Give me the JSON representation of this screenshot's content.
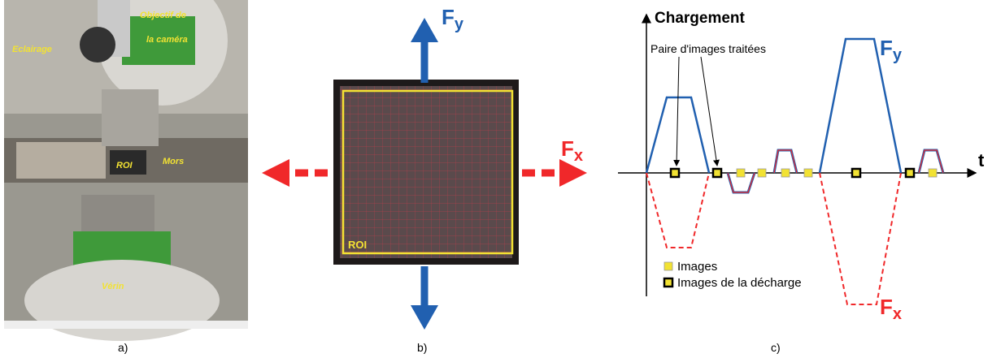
{
  "panel_a": {
    "labels": {
      "objective_line1": "Objectif de",
      "objective_line2": "la caméra",
      "lighting": "Eclairage",
      "roi": "ROI",
      "jaws": "Mors",
      "actuator": "Vérin"
    },
    "caption": "a)"
  },
  "panel_b": {
    "fy": {
      "main": "F",
      "sub": "y"
    },
    "fx": {
      "main": "F",
      "sub": "x"
    },
    "roi": "ROI",
    "caption": "b)"
  },
  "panel_c": {
    "y_axis_label": "Chargement",
    "x_axis_label": "t",
    "annotation": "Paire d'images traitées",
    "fy": {
      "main": "F",
      "sub": "y"
    },
    "fx": {
      "main": "F",
      "sub": "x"
    },
    "legend": [
      "Images",
      "Images de la décharge"
    ],
    "caption": "c)"
  }
}
